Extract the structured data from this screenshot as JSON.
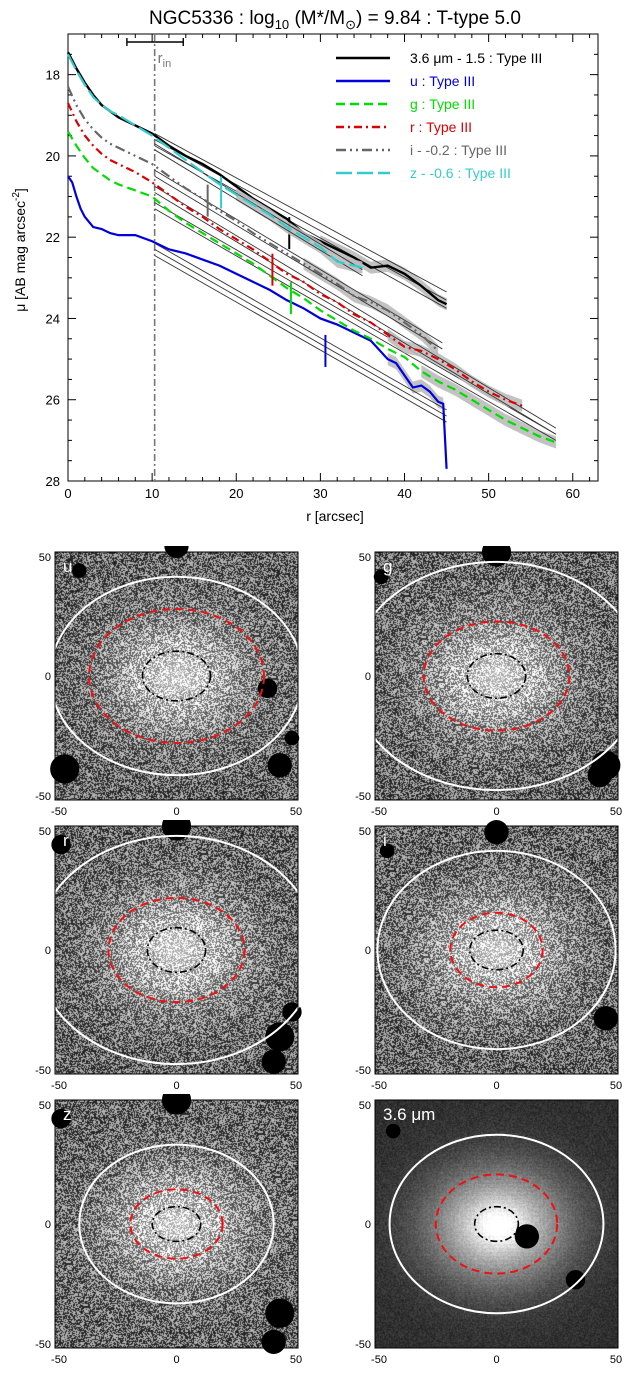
{
  "chart_data": [
    {
      "type": "line",
      "title": "NGC5336 : log",
      "title_sub": "10",
      "title_mid": " (M",
      "title_star": "*",
      "title_mid2": "/M",
      "title_sun": "⊙",
      "title_end": ") = 9.84 : T-type 5.0",
      "xlabel": "r [arcsec]",
      "ylabel": "μ [AB mag arcsec",
      "ylabel_sup": "-2",
      "ylabel_end": "]",
      "xlim": [
        0,
        63
      ],
      "ylim": [
        28,
        17
      ],
      "y_inverted": true,
      "xticks": [
        "0",
        "10",
        "20",
        "30",
        "40",
        "50",
        "60"
      ],
      "yticks": [
        "18",
        "20",
        "22",
        "24",
        "26",
        "28"
      ],
      "r_in_label": "r",
      "r_in_sub": "in",
      "r_in_value": 10.3,
      "r_in_range": [
        7,
        13.7
      ],
      "legend_position": "top-right",
      "series": [
        {
          "name": "3.6 μm - 1.5 : Type III",
          "color": "#000000",
          "dash": "",
          "width": 2.4,
          "x": [
            0,
            1,
            2,
            3,
            4,
            5,
            6,
            8,
            10,
            12,
            14,
            16,
            18,
            20,
            22,
            24,
            26,
            28,
            30,
            32,
            34,
            36,
            38,
            40,
            42,
            44,
            45
          ],
          "y": [
            17.45,
            17.85,
            18.2,
            18.5,
            18.75,
            18.9,
            19.05,
            19.25,
            19.45,
            19.75,
            20.0,
            20.2,
            20.45,
            20.75,
            21.05,
            21.3,
            21.55,
            21.9,
            22.1,
            22.3,
            22.5,
            22.75,
            22.7,
            22.9,
            23.2,
            23.55,
            23.65
          ],
          "fits": [
            {
              "x": [
                10.3,
                45
              ],
              "y": [
                19.45,
                23.35
              ]
            },
            {
              "x": [
                10.3,
                45
              ],
              "y": [
                19.6,
                23.55
              ]
            },
            {
              "x": [
                10.3,
                45
              ],
              "y": [
                19.75,
                23.75
              ]
            }
          ],
          "breaks": [
            {
              "x": 26.3,
              "y": 21.9
            }
          ]
        },
        {
          "name": "u : Type III",
          "color": "#0000dd",
          "dash": "",
          "width": 2.2,
          "x": [
            0,
            0.5,
            1,
            1.5,
            2,
            3,
            4,
            5,
            6,
            8,
            10,
            12,
            14,
            16,
            18,
            20,
            22,
            24,
            26,
            28,
            30,
            32,
            34,
            36,
            38,
            39,
            40,
            41,
            42,
            43,
            44,
            44.6,
            45
          ],
          "y": [
            20.5,
            20.65,
            21.0,
            21.3,
            21.5,
            21.75,
            21.8,
            21.9,
            21.95,
            21.95,
            22.1,
            22.3,
            22.4,
            22.55,
            22.7,
            22.9,
            23.1,
            23.3,
            23.55,
            23.75,
            24.0,
            24.15,
            24.35,
            24.55,
            25.0,
            25.1,
            25.4,
            25.7,
            25.65,
            25.8,
            26.05,
            26.1,
            27.7
          ],
          "fits": [
            {
              "x": [
                10.3,
                45
              ],
              "y": [
                22.15,
                26.25
              ]
            },
            {
              "x": [
                10.3,
                45
              ],
              "y": [
                22.3,
                26.4
              ]
            },
            {
              "x": [
                10.3,
                45
              ],
              "y": [
                22.45,
                26.55
              ]
            }
          ],
          "breaks": [
            {
              "x": 30.6,
              "y": 24.8
            }
          ]
        },
        {
          "name": "g : Type III",
          "color": "#00dd00",
          "dash": "9,5",
          "width": 2.2,
          "x": [
            0,
            1,
            2,
            3,
            4,
            5,
            6,
            8,
            10,
            12,
            14,
            16,
            18,
            20,
            22,
            24,
            26,
            28,
            30,
            32,
            34,
            36,
            38,
            40,
            42,
            44,
            46,
            48,
            50,
            52,
            54,
            56,
            58
          ],
          "y": [
            19.4,
            19.75,
            20.05,
            20.3,
            20.45,
            20.6,
            20.7,
            20.85,
            21.0,
            21.35,
            21.65,
            21.9,
            22.15,
            22.4,
            22.65,
            22.95,
            23.25,
            23.5,
            23.8,
            24.05,
            24.3,
            24.5,
            24.75,
            24.95,
            25.3,
            25.55,
            25.75,
            26.0,
            26.25,
            26.5,
            26.7,
            26.9,
            27.05
          ],
          "fits": [
            {
              "x": [
                10.3,
                58
              ],
              "y": [
                21.15,
                26.85
              ]
            },
            {
              "x": [
                10.3,
                58
              ],
              "y": [
                21.3,
                27.0
              ]
            }
          ],
          "breaks": [
            {
              "x": 26.5,
              "y": 23.5
            }
          ]
        },
        {
          "name": "r : Type III",
          "color": "#dd0000",
          "dash": "8,4,2,4",
          "width": 2.2,
          "x": [
            0,
            1,
            2,
            3,
            4,
            5,
            6,
            8,
            10,
            12,
            14,
            16,
            18,
            20,
            22,
            24,
            26,
            28,
            30,
            32,
            34,
            36,
            38,
            40,
            42,
            44,
            46,
            48,
            50,
            52,
            54
          ],
          "y": [
            18.7,
            19.15,
            19.5,
            19.75,
            19.95,
            20.1,
            20.2,
            20.4,
            20.65,
            20.95,
            21.25,
            21.5,
            21.8,
            22.05,
            22.3,
            22.6,
            22.9,
            23.1,
            23.4,
            23.6,
            23.9,
            24.1,
            24.4,
            24.7,
            24.8,
            25.0,
            25.25,
            25.55,
            25.8,
            26.0,
            26.15
          ],
          "fits": [
            {
              "x": [
                10.3,
                58
              ],
              "y": [
                20.75,
                26.7
              ]
            },
            {
              "x": [
                10.3,
                58
              ],
              "y": [
                20.9,
                26.85
              ]
            }
          ],
          "breaks": [
            {
              "x": 24.3,
              "y": 22.8
            }
          ]
        },
        {
          "name": "i - -0.2 : Type III",
          "color": "#666666",
          "dash": "10,4,2,4,2,4",
          "width": 2.2,
          "x": [
            0,
            1,
            2,
            3,
            4,
            5,
            6,
            8,
            10,
            12,
            14,
            16,
            18,
            20,
            22,
            24,
            26,
            28,
            30,
            32,
            34,
            36,
            38,
            40,
            42,
            44
          ],
          "y": [
            18.3,
            18.75,
            19.1,
            19.35,
            19.55,
            19.7,
            19.8,
            20.0,
            20.2,
            20.5,
            20.8,
            21.05,
            21.35,
            21.6,
            21.9,
            22.15,
            22.4,
            22.65,
            22.9,
            23.15,
            23.45,
            23.6,
            23.8,
            24.1,
            24.4,
            24.8
          ],
          "fits": [
            {
              "x": [
                10.3,
                44.5
              ],
              "y": [
                20.35,
                24.6
              ]
            },
            {
              "x": [
                10.3,
                44.5
              ],
              "y": [
                20.5,
                24.75
              ]
            }
          ],
          "breaks": [
            {
              "x": 16.6,
              "y": 21.1
            }
          ]
        },
        {
          "name": "z - -0.6 : Type III",
          "color": "#33cccc",
          "dash": "16,5",
          "width": 2.2,
          "x": [
            0,
            1,
            2,
            3,
            4,
            5,
            6,
            8,
            10,
            12,
            14,
            16,
            18,
            20,
            22,
            24,
            26,
            28,
            30,
            32,
            34,
            35
          ],
          "y": [
            17.5,
            17.9,
            18.25,
            18.55,
            18.75,
            18.9,
            19.0,
            19.25,
            19.5,
            19.8,
            20.1,
            20.4,
            20.7,
            20.95,
            21.2,
            21.45,
            21.75,
            22.0,
            22.25,
            22.6,
            22.7,
            22.75
          ],
          "fits": [
            {
              "x": [
                10.3,
                35
              ],
              "y": [
                19.7,
                22.8
              ]
            },
            {
              "x": [
                10.3,
                35
              ],
              "y": [
                19.85,
                22.95
              ]
            }
          ],
          "breaks": [
            {
              "x": 18.2,
              "y": 20.9
            }
          ]
        }
      ]
    },
    {
      "type": "heatmap",
      "panels": [
        {
          "label": "u",
          "label_mu": "",
          "background": "noise",
          "xticks": [
            "-50",
            "0",
            "50"
          ],
          "yticks": [
            "50",
            "0",
            "-50"
          ],
          "white_ellipse_axes": [
            52,
            40
          ],
          "red_ellipse_axes": [
            36,
            27
          ],
          "black_ellipse_axes": [
            14,
            10
          ]
        },
        {
          "label": "g",
          "label_mu": "",
          "background": "noise",
          "xticks": [
            "-50",
            "0",
            "50"
          ],
          "yticks": [
            "50",
            "0",
            "-50"
          ],
          "white_ellipse_axes": [
            60,
            46
          ],
          "red_ellipse_axes": [
            30,
            22
          ],
          "black_ellipse_axes": [
            12,
            9
          ]
        },
        {
          "label": "r",
          "label_mu": "",
          "background": "noise",
          "xticks": [
            "-50",
            "0",
            "50"
          ],
          "yticks": [
            "50",
            "0",
            "-50"
          ],
          "white_ellipse_axes": [
            58,
            46
          ],
          "red_ellipse_axes": [
            28,
            21
          ],
          "black_ellipse_axes": [
            12,
            9
          ]
        },
        {
          "label": "i",
          "label_mu": "",
          "background": "noise",
          "xticks": [
            "-50",
            "0",
            "50"
          ],
          "yticks": [
            "50",
            "0",
            "-50"
          ],
          "white_ellipse_axes": [
            49,
            40
          ],
          "red_ellipse_axes": [
            19,
            15
          ],
          "black_ellipse_axes": [
            11,
            8
          ]
        },
        {
          "label": "z",
          "label_mu": "",
          "background": "noise",
          "xticks": [
            "-50",
            "0",
            "50"
          ],
          "yticks": [
            "50",
            "0",
            "-50"
          ],
          "white_ellipse_axes": [
            40,
            32
          ],
          "red_ellipse_axes": [
            19,
            14
          ],
          "black_ellipse_axes": [
            10,
            7
          ]
        },
        {
          "label": "3.6 ",
          "label_mu": "μm",
          "background": "pixel",
          "xticks": [
            "-50",
            "0",
            "50"
          ],
          "yticks": [
            "50",
            "0",
            "-50"
          ],
          "white_ellipse_axes": [
            44,
            36
          ],
          "red_ellipse_axes": [
            25,
            20
          ],
          "black_ellipse_axes": [
            9,
            7
          ]
        }
      ]
    }
  ],
  "colors": {
    "grey_shade": "#bbbbbb",
    "fit_line": "#333333",
    "r_in_line": "#777777",
    "ellipse_white": "#ffffff",
    "ellipse_red": "#ee1111",
    "ellipse_black": "#000000"
  }
}
